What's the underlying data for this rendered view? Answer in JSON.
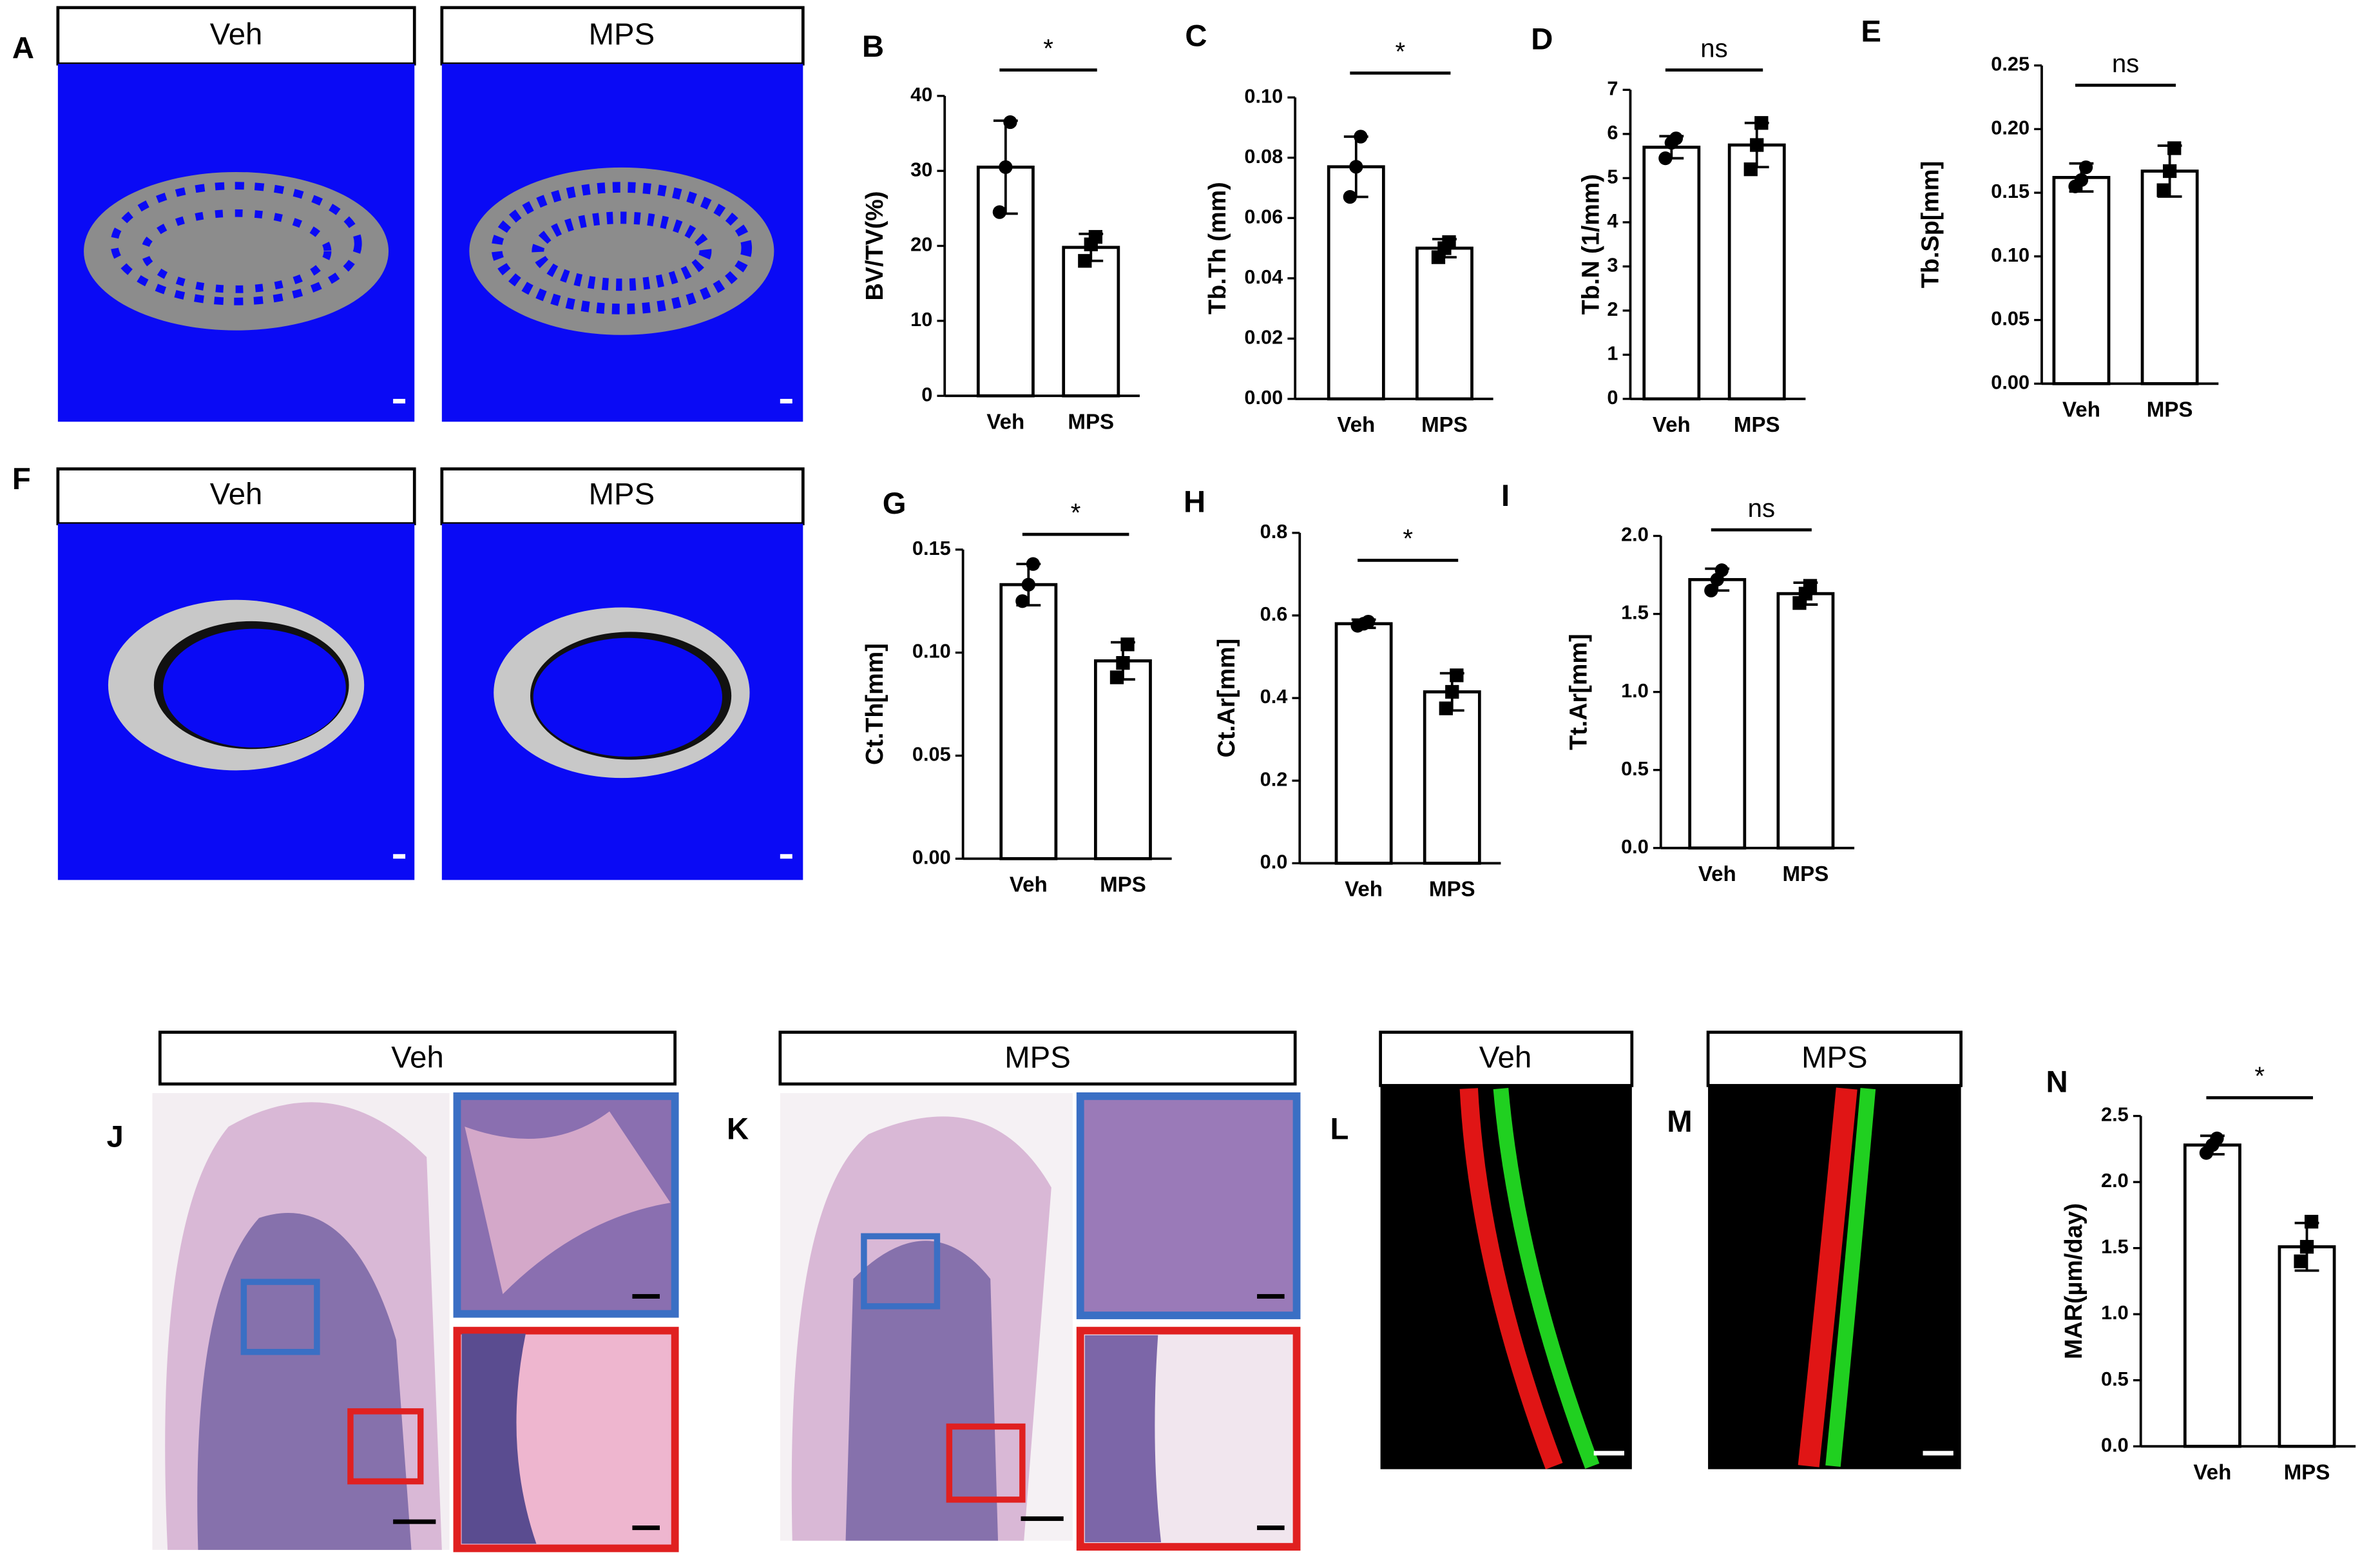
{
  "images": [
    {
      "letter": "A",
      "captions": [
        "Veh",
        "MPS"
      ]
    },
    {
      "letter": "F",
      "captions": [
        "Veh",
        "MPS"
      ]
    },
    {
      "letter": "J",
      "captions": [
        "Veh"
      ]
    },
    {
      "letter": "K",
      "captions": [
        "MPS"
      ]
    },
    {
      "letter": "L",
      "captions": [
        "Veh"
      ]
    },
    {
      "letter": "M",
      "captions": [
        "MPS"
      ]
    }
  ],
  "chart_data": [
    {
      "type": "bar",
      "panel": "B",
      "ylabel": "BV/TV(%)",
      "categories": [
        "Veh",
        "MPS"
      ],
      "values": [
        30.5,
        19.8
      ],
      "errors": [
        6.2,
        1.8
      ],
      "points": [
        [
          36.5,
          30.5,
          24.5
        ],
        [
          21.2,
          20.2,
          18.0
        ]
      ],
      "markers": [
        "circle",
        "square"
      ],
      "significance": "*",
      "ylim": [
        0,
        40
      ],
      "yticks": [
        0,
        10,
        20,
        30,
        40
      ]
    },
    {
      "type": "bar",
      "panel": "C",
      "ylabel": "Tb.Th (mm)",
      "categories": [
        "Veh",
        "MPS"
      ],
      "values": [
        0.077,
        0.05
      ],
      "errors": [
        0.01,
        0.003
      ],
      "points": [
        [
          0.087,
          0.077,
          0.067
        ],
        [
          0.052,
          0.05,
          0.047
        ]
      ],
      "markers": [
        "circle",
        "square"
      ],
      "significance": "*",
      "ylim": [
        0,
        0.1
      ],
      "yticks": [
        {
          "value": 0,
          "label": "0.00"
        },
        {
          "value": 0.02,
          "label": "0.02"
        },
        {
          "value": 0.04,
          "label": "0.04"
        },
        {
          "value": 0.06,
          "label": "0.06"
        },
        {
          "value": 0.08,
          "label": "0.08"
        },
        {
          "value": 0.1,
          "label": "0.10"
        }
      ]
    },
    {
      "type": "bar",
      "panel": "D",
      "ylabel": "Tb.N (1/mm)",
      "categories": [
        "Veh",
        "MPS"
      ],
      "values": [
        5.7,
        5.75
      ],
      "errors": [
        0.25,
        0.5
      ],
      "points": [
        [
          5.9,
          5.8,
          5.45
        ],
        [
          6.25,
          5.75,
          5.2
        ]
      ],
      "markers": [
        "circle",
        "square"
      ],
      "significance": "ns",
      "ylim": [
        0,
        7
      ],
      "yticks": [
        0,
        1,
        2,
        3,
        4,
        5,
        6,
        7
      ]
    },
    {
      "type": "bar",
      "panel": "E",
      "ylabel": "Tb.Sp[mm]",
      "categories": [
        "Veh",
        "MPS"
      ],
      "values": [
        0.162,
        0.167
      ],
      "errors": [
        0.011,
        0.02
      ],
      "points": [
        [
          0.17,
          0.16,
          0.155
        ],
        [
          0.185,
          0.167,
          0.152
        ]
      ],
      "markers": [
        "circle",
        "square"
      ],
      "significance": "ns",
      "ylim": [
        0,
        0.25
      ],
      "yticks": [
        {
          "value": 0,
          "label": "0.00"
        },
        {
          "value": 0.05,
          "label": "0.05"
        },
        {
          "value": 0.1,
          "label": "0.10"
        },
        {
          "value": 0.15,
          "label": "0.15"
        },
        {
          "value": 0.2,
          "label": "0.20"
        },
        {
          "value": 0.25,
          "label": "0.25"
        }
      ]
    },
    {
      "type": "bar",
      "panel": "G",
      "ylabel": "Ct.Th[mm]",
      "categories": [
        "Veh",
        "MPS"
      ],
      "values": [
        0.133,
        0.096
      ],
      "errors": [
        0.01,
        0.009
      ],
      "points": [
        [
          0.143,
          0.133,
          0.125
        ],
        [
          0.104,
          0.095,
          0.088
        ]
      ],
      "markers": [
        "circle",
        "square"
      ],
      "significance": "*",
      "ylim": [
        0,
        0.15
      ],
      "yticks": [
        {
          "value": 0,
          "label": "0.00"
        },
        {
          "value": 0.05,
          "label": "0.05"
        },
        {
          "value": 0.1,
          "label": "0.10"
        },
        {
          "value": 0.15,
          "label": "0.15"
        }
      ]
    },
    {
      "type": "bar",
      "panel": "H",
      "ylabel": "Ct.Ar[mm]",
      "categories": [
        "Veh",
        "MPS"
      ],
      "values": [
        0.58,
        0.415
      ],
      "errors": [
        0.01,
        0.045
      ],
      "points": [
        [
          0.585,
          0.58,
          0.575
        ],
        [
          0.455,
          0.415,
          0.375
        ]
      ],
      "markers": [
        "circle",
        "square"
      ],
      "significance": "*",
      "ylim": [
        0,
        0.8
      ],
      "yticks": [
        {
          "value": 0,
          "label": "0.0"
        },
        {
          "value": 0.2,
          "label": "0.2"
        },
        {
          "value": 0.4,
          "label": "0.4"
        },
        {
          "value": 0.6,
          "label": "0.6"
        },
        {
          "value": 0.8,
          "label": "0.8"
        }
      ]
    },
    {
      "type": "bar",
      "panel": "I",
      "ylabel": "Tt.Ar[mm]",
      "categories": [
        "Veh",
        "MPS"
      ],
      "values": [
        1.72,
        1.63
      ],
      "errors": [
        0.07,
        0.07
      ],
      "points": [
        [
          1.78,
          1.72,
          1.65
        ],
        [
          1.68,
          1.63,
          1.57
        ]
      ],
      "markers": [
        "circle",
        "square"
      ],
      "significance": "ns",
      "ylim": [
        0,
        2
      ],
      "yticks": [
        {
          "value": 0,
          "label": "0.0"
        },
        {
          "value": 0.5,
          "label": "0.5"
        },
        {
          "value": 1,
          "label": "1.0"
        },
        {
          "value": 1.5,
          "label": "1.5"
        },
        {
          "value": 2,
          "label": "2.0"
        }
      ]
    },
    {
      "type": "bar",
      "panel": "N",
      "ylabel": "MAR(µm/day)",
      "categories": [
        "Veh",
        "MPS"
      ],
      "values": [
        2.28,
        1.51
      ],
      "errors": [
        0.07,
        0.18
      ],
      "points": [
        [
          2.33,
          2.28,
          2.22
        ],
        [
          1.7,
          1.51,
          1.4
        ]
      ],
      "markers": [
        "circle",
        "square"
      ],
      "significance": "*",
      "ylim": [
        0,
        2.5
      ],
      "yticks": [
        {
          "value": 0,
          "label": "0.0"
        },
        {
          "value": 0.5,
          "label": "0.5"
        },
        {
          "value": 1,
          "label": "1.0"
        },
        {
          "value": 1.5,
          "label": "1.5"
        },
        {
          "value": 2,
          "label": "2.0"
        },
        {
          "value": 2.5,
          "label": "2.5"
        }
      ]
    }
  ]
}
